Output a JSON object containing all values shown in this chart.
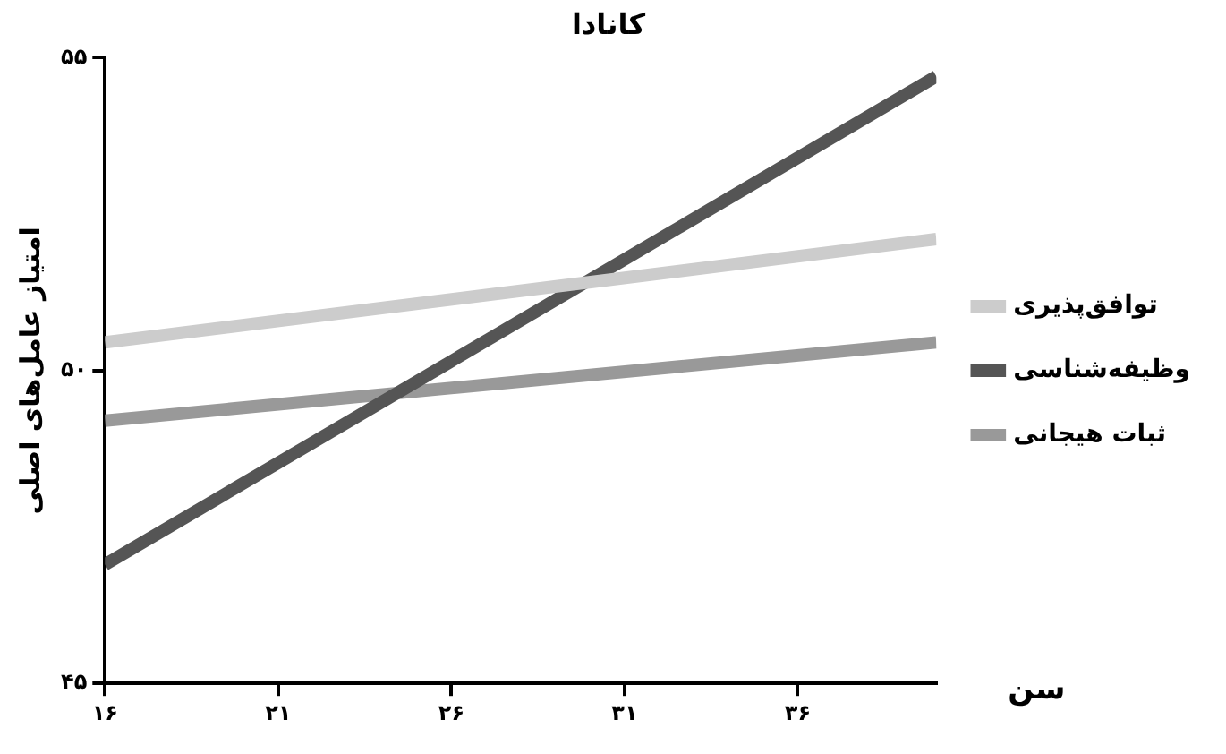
{
  "chart_data": {
    "type": "line",
    "title": "کانادا",
    "xlabel": "سن",
    "ylabel": "امتیاز عامل‌های اصلی",
    "x": [
      16,
      40
    ],
    "series": [
      {
        "name": "توافق‌پذیری",
        "color": "#cccccc",
        "values": [
          50.45,
          52.1
        ]
      },
      {
        "name": "وظیفه‌شناسی",
        "color": "#555555",
        "values": [
          46.9,
          54.7
        ]
      },
      {
        "name": "ثبات هیجانی",
        "color": "#999999",
        "values": [
          49.2,
          50.45
        ]
      }
    ],
    "xlim": [
      16,
      40
    ],
    "xticks": [
      {
        "value": 16,
        "label": "۱۶"
      },
      {
        "value": 21,
        "label": "۲۱"
      },
      {
        "value": 26,
        "label": "۲۶"
      },
      {
        "value": 31,
        "label": "۳۱"
      },
      {
        "value": 36,
        "label": "۳۶"
      }
    ],
    "ylim": [
      45,
      55
    ],
    "yticks": [
      {
        "value": 45,
        "label": "۴۵"
      },
      {
        "value": 50,
        "label": "۵۰"
      },
      {
        "value": 55,
        "label": "۵۵"
      }
    ],
    "grid": false,
    "legend": "right",
    "marker": "none",
    "line_style": "solid"
  }
}
